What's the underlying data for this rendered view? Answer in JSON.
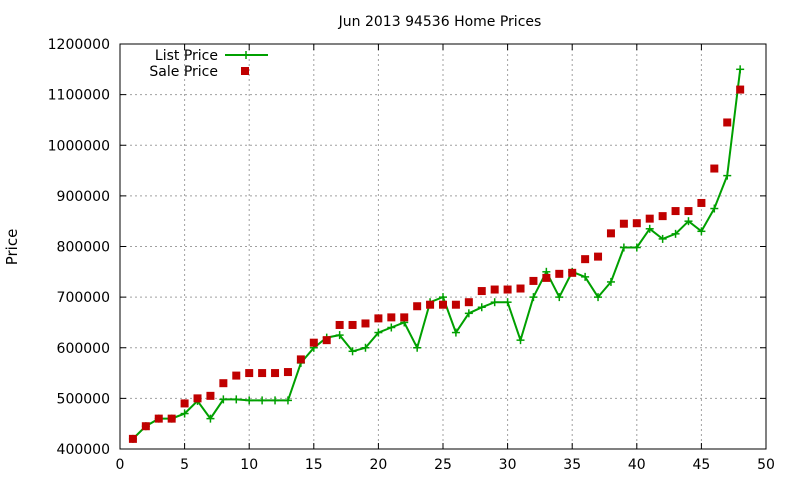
{
  "chart_data": {
    "type": "line",
    "title": "Jun 2013 94536 Home Prices",
    "xlabel": "",
    "ylabel": "Price",
    "xlim": [
      0,
      50
    ],
    "ylim": [
      400000,
      1200000
    ],
    "x_ticks": [
      "0",
      "5",
      "10",
      "15",
      "20",
      "25",
      "30",
      "35",
      "40",
      "45",
      "50"
    ],
    "y_ticks": [
      "400000",
      "500000",
      "600000",
      "700000",
      "800000",
      "900000",
      "1000000",
      "1100000",
      "1200000"
    ],
    "grid": true,
    "legend_position": "top-left",
    "x": [
      1,
      2,
      3,
      4,
      5,
      6,
      7,
      8,
      9,
      10,
      11,
      12,
      13,
      14,
      15,
      16,
      17,
      18,
      19,
      20,
      21,
      22,
      23,
      24,
      25,
      26,
      27,
      28,
      29,
      30,
      31,
      32,
      33,
      34,
      35,
      36,
      37,
      38,
      39,
      40,
      41,
      42,
      43,
      44,
      45,
      46,
      47,
      48
    ],
    "series": [
      {
        "name": "List Price",
        "style": "line-points",
        "color": "#00a000",
        "marker": "plus",
        "values": [
          420000,
          445000,
          460000,
          460000,
          470000,
          495000,
          460000,
          498000,
          498000,
          496000,
          496000,
          496000,
          496000,
          570000,
          600000,
          620000,
          625000,
          593000,
          600000,
          630000,
          640000,
          650000,
          600000,
          690000,
          700000,
          630000,
          668000,
          680000,
          690000,
          690000,
          615000,
          700000,
          750000,
          700000,
          750000,
          740000,
          700000,
          730000,
          798000,
          798000,
          835000,
          815000,
          825000,
          850000,
          830000,
          875000,
          940000,
          1150000
        ]
      },
      {
        "name": "Sale Price",
        "style": "points",
        "color": "#c00000",
        "marker": "square",
        "values": [
          420000,
          445000,
          460000,
          460000,
          490000,
          500000,
          505000,
          530000,
          545000,
          550000,
          550000,
          550000,
          552000,
          577000,
          610000,
          615000,
          645000,
          645000,
          648000,
          658000,
          660000,
          660000,
          682000,
          685000,
          685000,
          685000,
          690000,
          712000,
          715000,
          715000,
          717000,
          732000,
          738000,
          746000,
          748000,
          775000,
          780000,
          826000,
          845000,
          846000,
          855000,
          860000,
          870000,
          870000,
          886000,
          954000,
          1045000,
          1110000
        ]
      }
    ]
  }
}
